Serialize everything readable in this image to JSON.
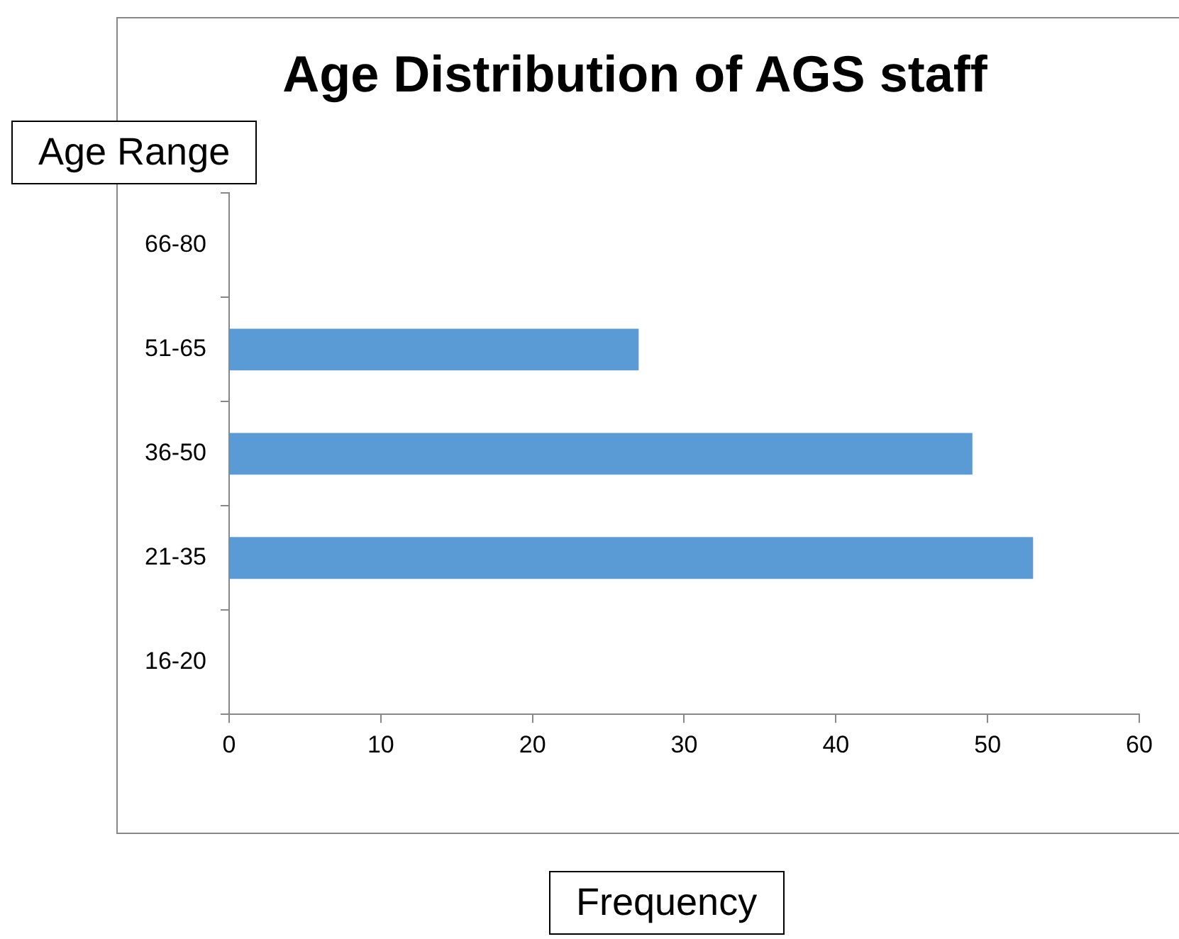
{
  "chart_data": {
    "type": "bar",
    "orientation": "horizontal",
    "title": "Age Distribution of AGS staff",
    "xlabel": "Frequency",
    "ylabel": "Age Range",
    "categories": [
      "66-80",
      "51-65",
      "36-50",
      "21-35",
      "16-20"
    ],
    "values": [
      0,
      27,
      49,
      53,
      0
    ],
    "color": "#5b9bd5",
    "xlim": [
      0,
      60
    ],
    "xticks": [
      0,
      10,
      20,
      30,
      40,
      50,
      60
    ]
  }
}
